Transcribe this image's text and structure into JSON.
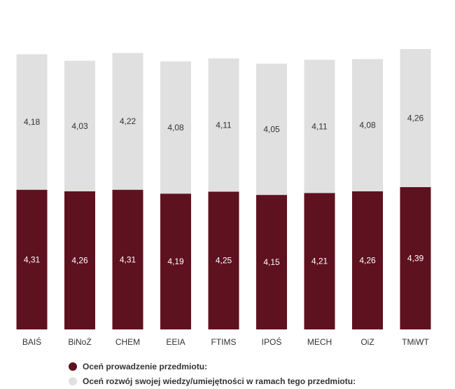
{
  "chart_data": {
    "type": "bar",
    "stacked": true,
    "categories": [
      "BAIŚ",
      "BiNoŻ",
      "CHEM",
      "EEIA",
      "FTIMS",
      "IPOŚ",
      "MECH",
      "OiZ",
      "TMiWT"
    ],
    "series": [
      {
        "name": "Oceń prowadzenie przedmiotu:",
        "color": "#5e111f",
        "values": [
          4.31,
          4.26,
          4.31,
          4.19,
          4.25,
          4.15,
          4.21,
          4.26,
          4.39
        ],
        "labels": [
          "4,31",
          "4,26",
          "4,31",
          "4,19",
          "4,25",
          "4,15",
          "4,21",
          "4,26",
          "4,39"
        ]
      },
      {
        "name": "Oceń rozwój swojej wiedzy/umiejętności w ramach tego przedmiotu:",
        "color": "#e0e0e0",
        "values": [
          4.18,
          4.03,
          4.22,
          4.08,
          4.11,
          4.05,
          4.11,
          4.08,
          4.26
        ],
        "labels": [
          "4,18",
          "4,03",
          "4,22",
          "4,08",
          "4,11",
          "4,05",
          "4,11",
          "4,08",
          "4,26"
        ]
      }
    ],
    "ylim": [
      0,
      8.65
    ],
    "grid": false,
    "y_axis_visible": false,
    "legend_position": "bottom-left",
    "label_color_on_dark": "#ffffff",
    "label_color_on_light": "#333333",
    "category_label_color": "#333333"
  }
}
